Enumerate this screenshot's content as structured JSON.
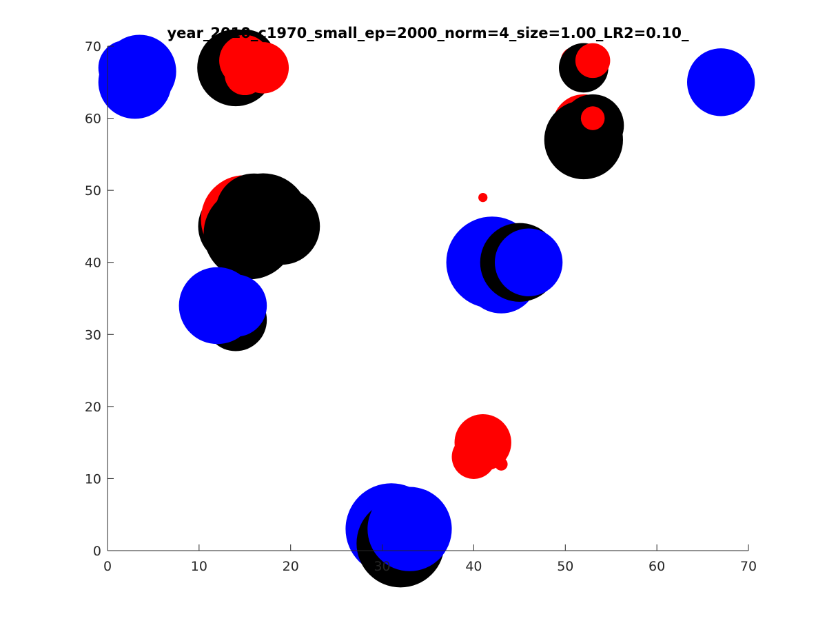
{
  "chart_data": {
    "type": "scatter",
    "title": "year_2010_c1970_small_ep=2000_norm=4_size=1.00_LR2=0.10_",
    "xlabel": "",
    "ylabel": "",
    "xlim": [
      0,
      70
    ],
    "ylim": [
      0,
      70
    ],
    "xticks": [
      "0",
      "10",
      "20",
      "30",
      "40",
      "50",
      "60",
      "70"
    ],
    "yticks": [
      "0",
      "10",
      "20",
      "30",
      "40",
      "50",
      "60",
      "70"
    ],
    "grid": false,
    "colors": {
      "blue": "#0000ff",
      "red": "#ff0000",
      "black": "#000000",
      "axis": "#262626"
    },
    "points": [
      {
        "x": 3,
        "y": 65,
        "r": 4.0,
        "color": "blue"
      },
      {
        "x": 2,
        "y": 67,
        "r": 3.0,
        "color": "blue"
      },
      {
        "x": 3.5,
        "y": 66.5,
        "r": 4.0,
        "color": "blue"
      },
      {
        "x": 67,
        "y": 65,
        "r": 3.7,
        "color": "blue"
      },
      {
        "x": 14,
        "y": 67,
        "r": 4.2,
        "color": "black"
      },
      {
        "x": 15,
        "y": 68,
        "r": 3.4,
        "color": "black"
      },
      {
        "x": 15,
        "y": 68,
        "r": 2.8,
        "color": "red"
      },
      {
        "x": 17,
        "y": 67,
        "r": 2.8,
        "color": "red"
      },
      {
        "x": 15,
        "y": 66,
        "r": 2.2,
        "color": "red"
      },
      {
        "x": 51,
        "y": 68,
        "r": 1.5,
        "color": "red"
      },
      {
        "x": 52,
        "y": 67,
        "r": 2.7,
        "color": "black"
      },
      {
        "x": 53,
        "y": 68,
        "r": 1.9,
        "color": "red"
      },
      {
        "x": 52,
        "y": 59,
        "r": 3.4,
        "color": "red"
      },
      {
        "x": 52,
        "y": 57,
        "r": 4.3,
        "color": "black"
      },
      {
        "x": 53,
        "y": 59,
        "r": 3.4,
        "color": "black"
      },
      {
        "x": 53,
        "y": 60,
        "r": 1.3,
        "color": "red"
      },
      {
        "x": 14,
        "y": 45,
        "r": 4.1,
        "color": "black"
      },
      {
        "x": 15,
        "y": 46,
        "r": 4.8,
        "color": "red"
      },
      {
        "x": 15.5,
        "y": 44,
        "r": 5.0,
        "color": "black"
      },
      {
        "x": 17,
        "y": 46,
        "r": 5.0,
        "color": "black"
      },
      {
        "x": 19,
        "y": 45,
        "r": 4.2,
        "color": "black"
      },
      {
        "x": 16,
        "y": 47,
        "r": 4.2,
        "color": "black"
      },
      {
        "x": 41,
        "y": 49,
        "r": 0.5,
        "color": "red"
      },
      {
        "x": 42,
        "y": 40,
        "r": 5.0,
        "color": "blue"
      },
      {
        "x": 43,
        "y": 38,
        "r": 4.0,
        "color": "blue"
      },
      {
        "x": 45,
        "y": 40,
        "r": 4.3,
        "color": "black"
      },
      {
        "x": 46,
        "y": 40,
        "r": 3.7,
        "color": "blue"
      },
      {
        "x": 14,
        "y": 32,
        "r": 3.4,
        "color": "black"
      },
      {
        "x": 12,
        "y": 33,
        "r": 2.2,
        "color": "black"
      },
      {
        "x": 12,
        "y": 34,
        "r": 4.2,
        "color": "blue"
      },
      {
        "x": 14,
        "y": 34,
        "r": 3.4,
        "color": "blue"
      },
      {
        "x": 41,
        "y": 15,
        "r": 3.1,
        "color": "red"
      },
      {
        "x": 40,
        "y": 13,
        "r": 2.4,
        "color": "red"
      },
      {
        "x": 43,
        "y": 12,
        "r": 0.7,
        "color": "red"
      },
      {
        "x": 31,
        "y": 3,
        "r": 5.0,
        "color": "blue"
      },
      {
        "x": 32,
        "y": 1,
        "r": 4.8,
        "color": "black"
      },
      {
        "x": 33,
        "y": 3,
        "r": 4.6,
        "color": "blue"
      }
    ]
  }
}
